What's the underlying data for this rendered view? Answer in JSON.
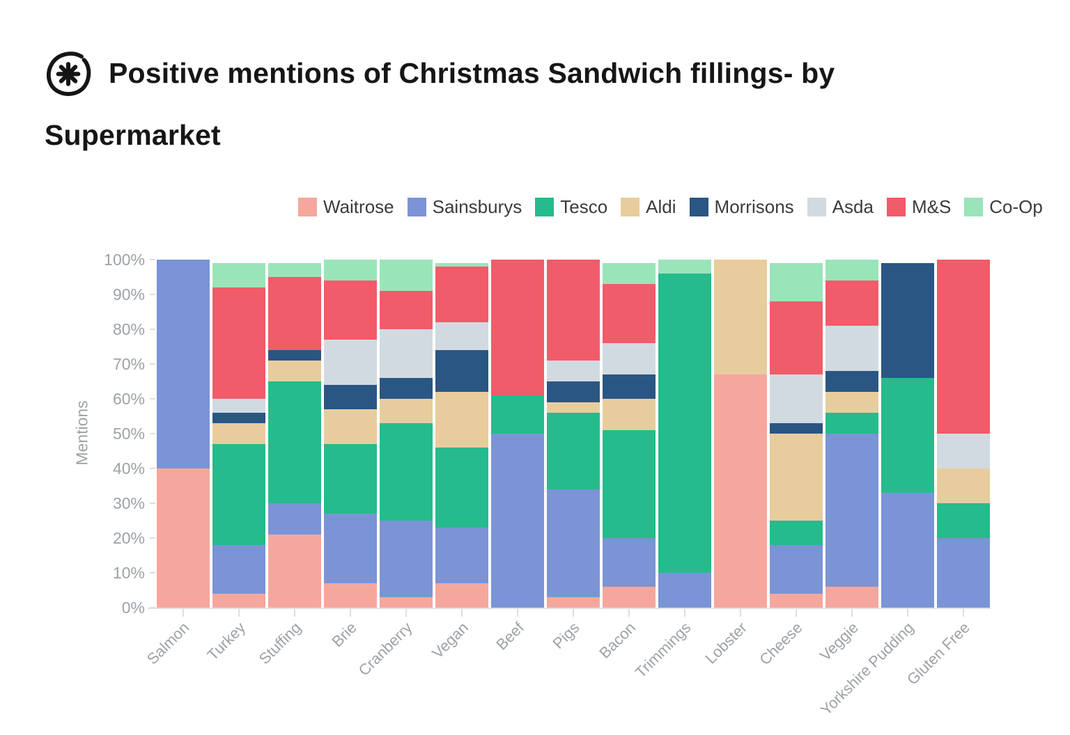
{
  "header": {
    "title_line1": "Positive mentions of Christmas Sandwich fillings- by",
    "title_line2": "Supermarket",
    "logo": "asterisk-in-circle"
  },
  "chart_data": {
    "type": "bar",
    "stacked": true,
    "units": "percent",
    "title": "Positive mentions of Christmas Sandwich fillings- by Supermarket",
    "ylabel": "Mentions",
    "xlabel": "",
    "ylim": [
      0,
      100
    ],
    "ytick_labels": [
      "0%",
      "10%",
      "20%",
      "30%",
      "40%",
      "50%",
      "60%",
      "70%",
      "80%",
      "90%",
      "100%"
    ],
    "legend_position": "top",
    "grid": false,
    "categories": [
      "Salmon",
      "Turkey",
      "Stuffing",
      "Brie",
      "Cranberry",
      "Vegan",
      "Beef",
      "Pigs",
      "Bacon",
      "Trimmings",
      "Lobster",
      "Cheese",
      "Veggie",
      "Yorkshire Pudding",
      "Gluten Free"
    ],
    "series": [
      {
        "name": "Waitrose",
        "color": "#F5A79D",
        "values": [
          40,
          4,
          21,
          7,
          3,
          7,
          0,
          3,
          6,
          0,
          67,
          4,
          6,
          0,
          0
        ]
      },
      {
        "name": "Sainsburys",
        "color": "#7B94D5",
        "values": [
          60,
          14,
          9,
          20,
          22,
          16,
          50,
          31,
          14,
          10,
          0,
          14,
          44,
          33,
          20
        ]
      },
      {
        "name": "Tesco",
        "color": "#26BB8C",
        "values": [
          0,
          29,
          35,
          20,
          28,
          23,
          11,
          22,
          31,
          86,
          0,
          7,
          6,
          33,
          10
        ]
      },
      {
        "name": "Aldi",
        "color": "#E7CD9D",
        "values": [
          0,
          6,
          6,
          10,
          7,
          16,
          0,
          3,
          9,
          0,
          33,
          25,
          6,
          0,
          10
        ]
      },
      {
        "name": "Morrisons",
        "color": "#2A5683",
        "values": [
          0,
          3,
          3,
          7,
          6,
          12,
          0,
          6,
          7,
          0,
          0,
          3,
          6,
          33,
          0
        ]
      },
      {
        "name": "Asda",
        "color": "#D2DAE1",
        "values": [
          0,
          4,
          0,
          13,
          14,
          8,
          0,
          6,
          9,
          0,
          0,
          14,
          13,
          0,
          10
        ]
      },
      {
        "name": "M&S",
        "color": "#F05C69",
        "values": [
          0,
          32,
          21,
          17,
          11,
          16,
          39,
          29,
          17,
          0,
          0,
          21,
          13,
          0,
          50
        ]
      },
      {
        "name": "Co-Op",
        "color": "#9AE4BA",
        "values": [
          0,
          7,
          4,
          6,
          9,
          1,
          0,
          0,
          6,
          4,
          0,
          11,
          6,
          0,
          0
        ]
      }
    ]
  }
}
